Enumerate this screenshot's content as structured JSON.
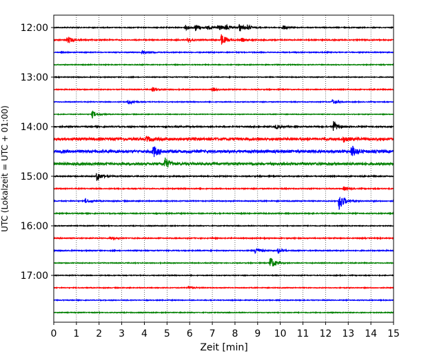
{
  "chart_data": {
    "type": "line",
    "title": "",
    "xlabel": "Zeit  [min]",
    "ylabel": "UTC (Lokalzeit = UTC + 01:00)",
    "xlim": [
      0,
      15
    ],
    "x_ticks": [
      0,
      1,
      2,
      3,
      4,
      5,
      6,
      7,
      8,
      9,
      10,
      11,
      12,
      13,
      14,
      15
    ],
    "x_tick_labels": [
      "0",
      "1",
      "2",
      "3",
      "4",
      "5",
      "6",
      "7",
      "8",
      "9",
      "10",
      "11",
      "12",
      "13",
      "14",
      "15"
    ],
    "y_ticks": [
      "12:00",
      "13:00",
      "14:00",
      "15:00",
      "16:00",
      "17:00"
    ],
    "grid": "vertical dotted at each minute",
    "trace_interval_min": 15,
    "color_cycle": [
      "#000000",
      "#ff0000",
      "#0000ff",
      "#008000"
    ],
    "traces": [
      {
        "start": "12:00",
        "color": "#000000",
        "noise": 0.1,
        "events": [
          {
            "t": 5.8,
            "amp": 0.6
          },
          {
            "t": 6.25,
            "amp": 0.8
          },
          {
            "t": 6.75,
            "amp": 0.6
          },
          {
            "t": 7.25,
            "amp": 0.9
          },
          {
            "t": 7.6,
            "amp": 0.6
          },
          {
            "t": 8.2,
            "amp": 1.0
          },
          {
            "t": 8.55,
            "amp": 0.5
          },
          {
            "t": 10.1,
            "amp": 0.6
          }
        ]
      },
      {
        "start": "12:15",
        "color": "#ff0000",
        "noise": 0.12,
        "events": [
          {
            "t": 0.6,
            "amp": 0.9
          },
          {
            "t": 5.9,
            "amp": 0.5
          },
          {
            "t": 7.4,
            "amp": 1.4
          },
          {
            "t": 8.3,
            "amp": 0.4
          }
        ]
      },
      {
        "start": "12:30",
        "color": "#0000ff",
        "noise": 0.1,
        "events": [
          {
            "t": 3.9,
            "amp": 0.5
          }
        ]
      },
      {
        "start": "12:45",
        "color": "#008000",
        "noise": 0.09,
        "events": []
      },
      {
        "start": "13:00",
        "color": "#000000",
        "noise": 0.09,
        "events": []
      },
      {
        "start": "13:15",
        "color": "#ff0000",
        "noise": 0.1,
        "events": [
          {
            "t": 4.35,
            "amp": 0.6
          },
          {
            "t": 7.0,
            "amp": 0.4
          }
        ]
      },
      {
        "start": "13:30",
        "color": "#0000ff",
        "noise": 0.09,
        "events": [
          {
            "t": 3.3,
            "amp": 0.6
          },
          {
            "t": 12.3,
            "amp": 0.6
          }
        ]
      },
      {
        "start": "13:45",
        "color": "#008000",
        "noise": 0.08,
        "events": [
          {
            "t": 1.7,
            "amp": 0.9
          }
        ]
      },
      {
        "start": "14:00",
        "color": "#000000",
        "noise": 0.14,
        "events": [
          {
            "t": 9.8,
            "amp": 0.5
          },
          {
            "t": 12.35,
            "amp": 1.3
          }
        ]
      },
      {
        "start": "14:15",
        "color": "#ff0000",
        "noise": 0.3,
        "events": [
          {
            "t": 4.1,
            "amp": 0.6
          },
          {
            "t": 12.8,
            "amp": 0.6
          }
        ]
      },
      {
        "start": "14:30",
        "color": "#0000ff",
        "noise": 0.32,
        "events": [
          {
            "t": 4.4,
            "amp": 1.4
          },
          {
            "t": 13.15,
            "amp": 1.5
          }
        ]
      },
      {
        "start": "14:45",
        "color": "#008000",
        "noise": 0.28,
        "events": [
          {
            "t": 4.9,
            "amp": 1.5
          }
        ]
      },
      {
        "start": "15:00",
        "color": "#000000",
        "noise": 0.12,
        "events": [
          {
            "t": 1.9,
            "amp": 1.2
          }
        ]
      },
      {
        "start": "15:15",
        "color": "#ff0000",
        "noise": 0.11,
        "events": [
          {
            "t": 12.8,
            "amp": 0.5
          }
        ]
      },
      {
        "start": "15:30",
        "color": "#0000ff",
        "noise": 0.11,
        "events": [
          {
            "t": 1.4,
            "amp": 0.6
          },
          {
            "t": 12.6,
            "amp": 2.4
          }
        ]
      },
      {
        "start": "15:45",
        "color": "#008000",
        "noise": 0.11,
        "events": []
      },
      {
        "start": "16:00",
        "color": "#000000",
        "noise": 0.09,
        "events": []
      },
      {
        "start": "16:15",
        "color": "#ff0000",
        "noise": 0.11,
        "events": [
          {
            "t": 2.5,
            "amp": 0.4
          }
        ]
      },
      {
        "start": "16:30",
        "color": "#0000ff",
        "noise": 0.11,
        "events": [
          {
            "t": 8.9,
            "amp": 0.9
          },
          {
            "t": 9.9,
            "amp": 0.6
          }
        ]
      },
      {
        "start": "16:45",
        "color": "#008000",
        "noise": 0.09,
        "events": [
          {
            "t": 9.55,
            "amp": 1.6
          }
        ]
      },
      {
        "start": "17:00",
        "color": "#000000",
        "noise": 0.09,
        "events": []
      },
      {
        "start": "17:15",
        "color": "#ff0000",
        "noise": 0.09,
        "events": [
          {
            "t": 5.95,
            "amp": 0.4
          }
        ]
      },
      {
        "start": "17:30",
        "color": "#0000ff",
        "noise": 0.09,
        "events": []
      },
      {
        "start": "17:45",
        "color": "#008000",
        "noise": 0.09,
        "events": []
      }
    ]
  }
}
